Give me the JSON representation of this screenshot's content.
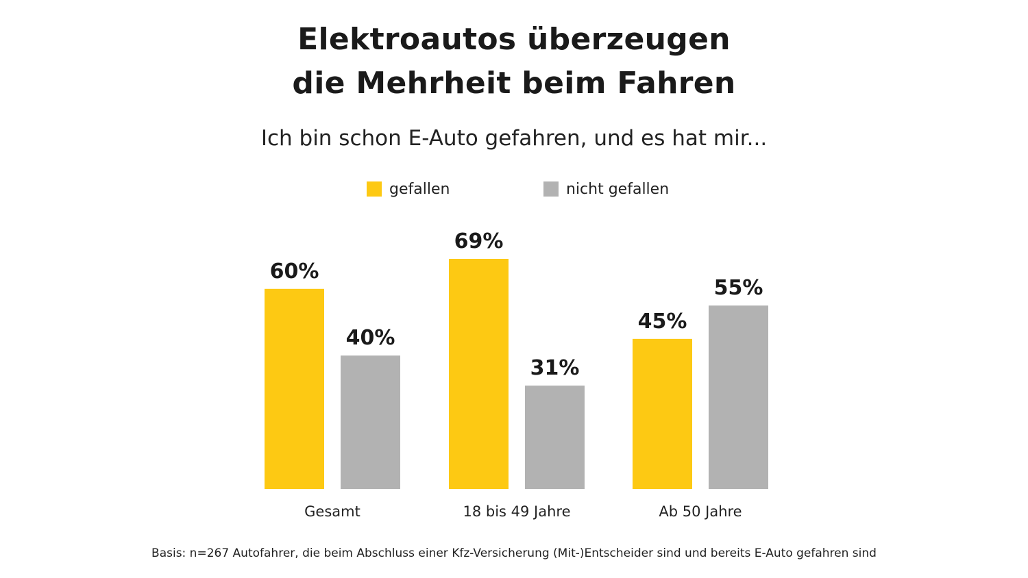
{
  "title_lines": [
    "Elektroautos überzeugen",
    "die Mehrheit beim Fahren"
  ],
  "subtitle": "Ich bin schon E-Auto gefahren, und es hat mir...",
  "legend": [
    {
      "label": "gefallen",
      "color": "#FDC913"
    },
    {
      "label": "nicht gefallen",
      "color": "#B2B2B2"
    }
  ],
  "footnote": "Basis: n=267 Autofahrer, die beim Abschluss einer Kfz-Versicherung (Mit-)Entscheider sind und bereits E-Auto gefahren sind",
  "chart_data": {
    "type": "bar",
    "title": "Elektroautos überzeugen die Mehrheit beim Fahren",
    "subtitle": "Ich bin schon E-Auto gefahren, und es hat mir...",
    "categories": [
      "Gesamt",
      "18 bis 49 Jahre",
      "Ab 50 Jahre"
    ],
    "series": [
      {
        "name": "gefallen",
        "color": "#FDC913",
        "values": [
          60,
          69,
          45
        ]
      },
      {
        "name": "nicht gefallen",
        "color": "#B2B2B2",
        "values": [
          40,
          31,
          55
        ]
      }
    ],
    "value_suffix": "%",
    "ylim": [
      0,
      100
    ],
    "grid": false,
    "legend_position": "top-center",
    "axes_visible": false
  }
}
